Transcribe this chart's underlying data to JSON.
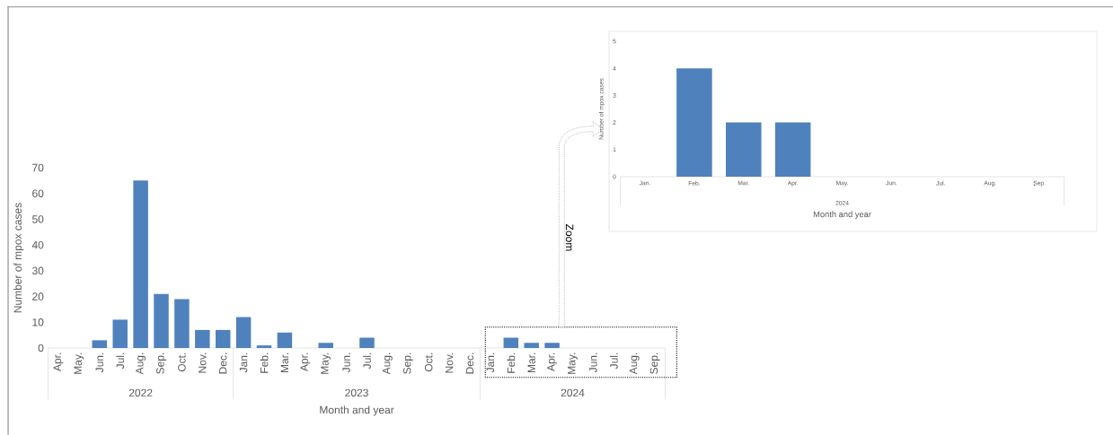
{
  "chart_data": [
    {
      "type": "bar",
      "xlabel": "Month and year",
      "ylabel": "Number of mpox cases",
      "categories": [
        "Apr.",
        "May.",
        "Jun.",
        "Jul.",
        "Aug.",
        "Sep.",
        "Oct.",
        "Nov.",
        "Dec.",
        "Jan.",
        "Feb.",
        "Mar.",
        "Apr.",
        "May.",
        "Jun.",
        "Jul.",
        "Aug.",
        "Sep.",
        "Oct.",
        "Nov.",
        "Dec.",
        "Jan.",
        "Feb.",
        "Mar.",
        "Apr.",
        "May.",
        "Jun.",
        "Jul.",
        "Aug.",
        "Sep."
      ],
      "values": [
        0,
        0,
        3,
        11,
        65,
        21,
        19,
        7,
        7,
        12,
        1,
        6,
        0,
        2,
        0,
        4,
        0,
        0,
        0,
        0,
        0,
        0,
        4,
        2,
        2,
        0,
        0,
        0,
        0,
        0
      ],
      "color": "#4f81bd",
      "ylim": [
        0,
        70
      ],
      "yticks": [
        0,
        10,
        20,
        30,
        40,
        50,
        60,
        70
      ],
      "annotations": [
        "2022",
        "2023",
        "2024",
        "Zoom"
      ]
    },
    {
      "type": "bar",
      "xlabel": "Month and year",
      "ylabel": "Number of mpox cases",
      "categories": [
        "Jan.",
        "Feb.",
        "Mar.",
        "Apr.",
        "May.",
        "Jun.",
        "Jul.",
        "Aug.",
        "Sep."
      ],
      "values": [
        0,
        4,
        2,
        2,
        0,
        0,
        0,
        0,
        0
      ],
      "color": "#4f81bd",
      "ylim": [
        0,
        5
      ],
      "yticks": [
        0,
        1,
        2,
        3,
        4,
        5
      ],
      "annotations": [
        "2024"
      ]
    }
  ]
}
